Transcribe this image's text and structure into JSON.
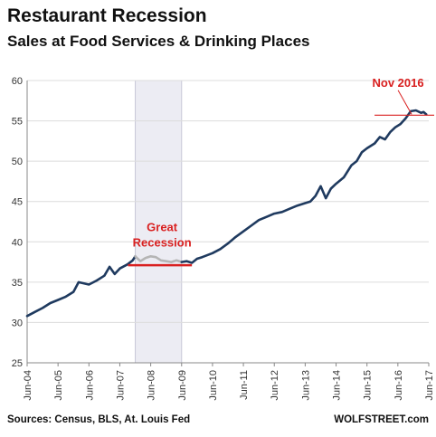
{
  "header": {
    "title": "Restaurant Recession",
    "subtitle": "Sales at Food Services & Drinking Places"
  },
  "footer": {
    "source": "Sources: Census, BLS, At. Louis Fed",
    "brand": "WOLFSTREET.com"
  },
  "colors": {
    "line": "#1f3a5f",
    "recession_line": "#b5b5b5",
    "recession_band": "#ececf3",
    "annotation": "#d92020",
    "grid": "#dcdcdc"
  },
  "chart_data": {
    "type": "line",
    "title": "Restaurant Recession",
    "subtitle": "Sales at Food Services & Drinking Places",
    "xlabel": "",
    "ylabel": "",
    "ylim": [
      25,
      60
    ],
    "yticks": [
      25,
      30,
      35,
      40,
      45,
      50,
      55,
      60
    ],
    "xticks": [
      "Jun-04",
      "Jun-05",
      "Jun-06",
      "Jun-07",
      "Jun-08",
      "Jun-09",
      "Jun-10",
      "Jun-11",
      "Jun-12",
      "Jun-13",
      "Jun-14",
      "Jun-15",
      "Jun-16",
      "Jun-17"
    ],
    "xrange": [
      "2004-06",
      "2017-06"
    ],
    "grid": "horizontal",
    "recession_band": {
      "start": "2007-12",
      "end": "2009-06"
    },
    "series": [
      {
        "points": [
          [
            "2004-06",
            30.8
          ],
          [
            "2004-09",
            31.3
          ],
          [
            "2004-12",
            31.8
          ],
          [
            "2005-03",
            32.4
          ],
          [
            "2005-06",
            32.8
          ],
          [
            "2005-09",
            33.2
          ],
          [
            "2005-12",
            33.8
          ],
          [
            "2006-02",
            35.0
          ],
          [
            "2006-06",
            34.7
          ],
          [
            "2006-09",
            35.2
          ],
          [
            "2006-12",
            35.8
          ],
          [
            "2007-02",
            36.9
          ],
          [
            "2007-04",
            36.0
          ],
          [
            "2007-06",
            36.7
          ],
          [
            "2007-09",
            37.2
          ],
          [
            "2007-11",
            37.7
          ],
          [
            "2007-12",
            38.2
          ]
        ]
      },
      {
        "points": [
          [
            "2007-12",
            38.2
          ],
          [
            "2008-02",
            37.6
          ],
          [
            "2008-04",
            38.0
          ],
          [
            "2008-06",
            38.2
          ],
          [
            "2008-08",
            38.1
          ],
          [
            "2008-10",
            37.7
          ],
          [
            "2008-12",
            37.6
          ],
          [
            "2009-02",
            37.5
          ],
          [
            "2009-04",
            37.7
          ],
          [
            "2009-06",
            37.5
          ]
        ]
      },
      {
        "points": [
          [
            "2009-06",
            37.5
          ],
          [
            "2009-08",
            37.6
          ],
          [
            "2009-10",
            37.4
          ],
          [
            "2009-12",
            37.9
          ],
          [
            "2010-02",
            38.1
          ],
          [
            "2010-06",
            38.6
          ],
          [
            "2010-09",
            39.1
          ],
          [
            "2010-12",
            39.8
          ],
          [
            "2011-03",
            40.6
          ],
          [
            "2011-06",
            41.3
          ],
          [
            "2011-09",
            42.0
          ],
          [
            "2011-12",
            42.7
          ],
          [
            "2012-03",
            43.1
          ],
          [
            "2012-06",
            43.5
          ],
          [
            "2012-09",
            43.7
          ],
          [
            "2012-12",
            44.1
          ],
          [
            "2013-03",
            44.5
          ],
          [
            "2013-06",
            44.8
          ],
          [
            "2013-08",
            45.0
          ],
          [
            "2013-10",
            45.7
          ],
          [
            "2013-12",
            46.9
          ],
          [
            "2014-02",
            45.4
          ],
          [
            "2014-04",
            46.6
          ],
          [
            "2014-06",
            47.2
          ],
          [
            "2014-09",
            48.0
          ],
          [
            "2014-12",
            49.5
          ],
          [
            "2015-02",
            50.0
          ],
          [
            "2015-04",
            51.1
          ],
          [
            "2015-06",
            51.6
          ],
          [
            "2015-09",
            52.2
          ],
          [
            "2015-11",
            53.0
          ],
          [
            "2016-01",
            52.7
          ],
          [
            "2016-03",
            53.6
          ],
          [
            "2016-05",
            54.2
          ],
          [
            "2016-07",
            54.6
          ],
          [
            "2016-09",
            55.3
          ],
          [
            "2016-11",
            56.2
          ],
          [
            "2017-01",
            56.3
          ],
          [
            "2017-03",
            56.0
          ],
          [
            "2017-04",
            56.1
          ],
          [
            "2017-05",
            55.8
          ]
        ]
      }
    ],
    "annotations": [
      {
        "text": "Nov 2016",
        "date": "2016-11",
        "value": 55.7
      },
      {
        "text": "Great Recession",
        "lines": [
          "Great",
          "Recession"
        ],
        "start": "2007-12",
        "end": "2009-10",
        "value": 37.1
      }
    ]
  }
}
